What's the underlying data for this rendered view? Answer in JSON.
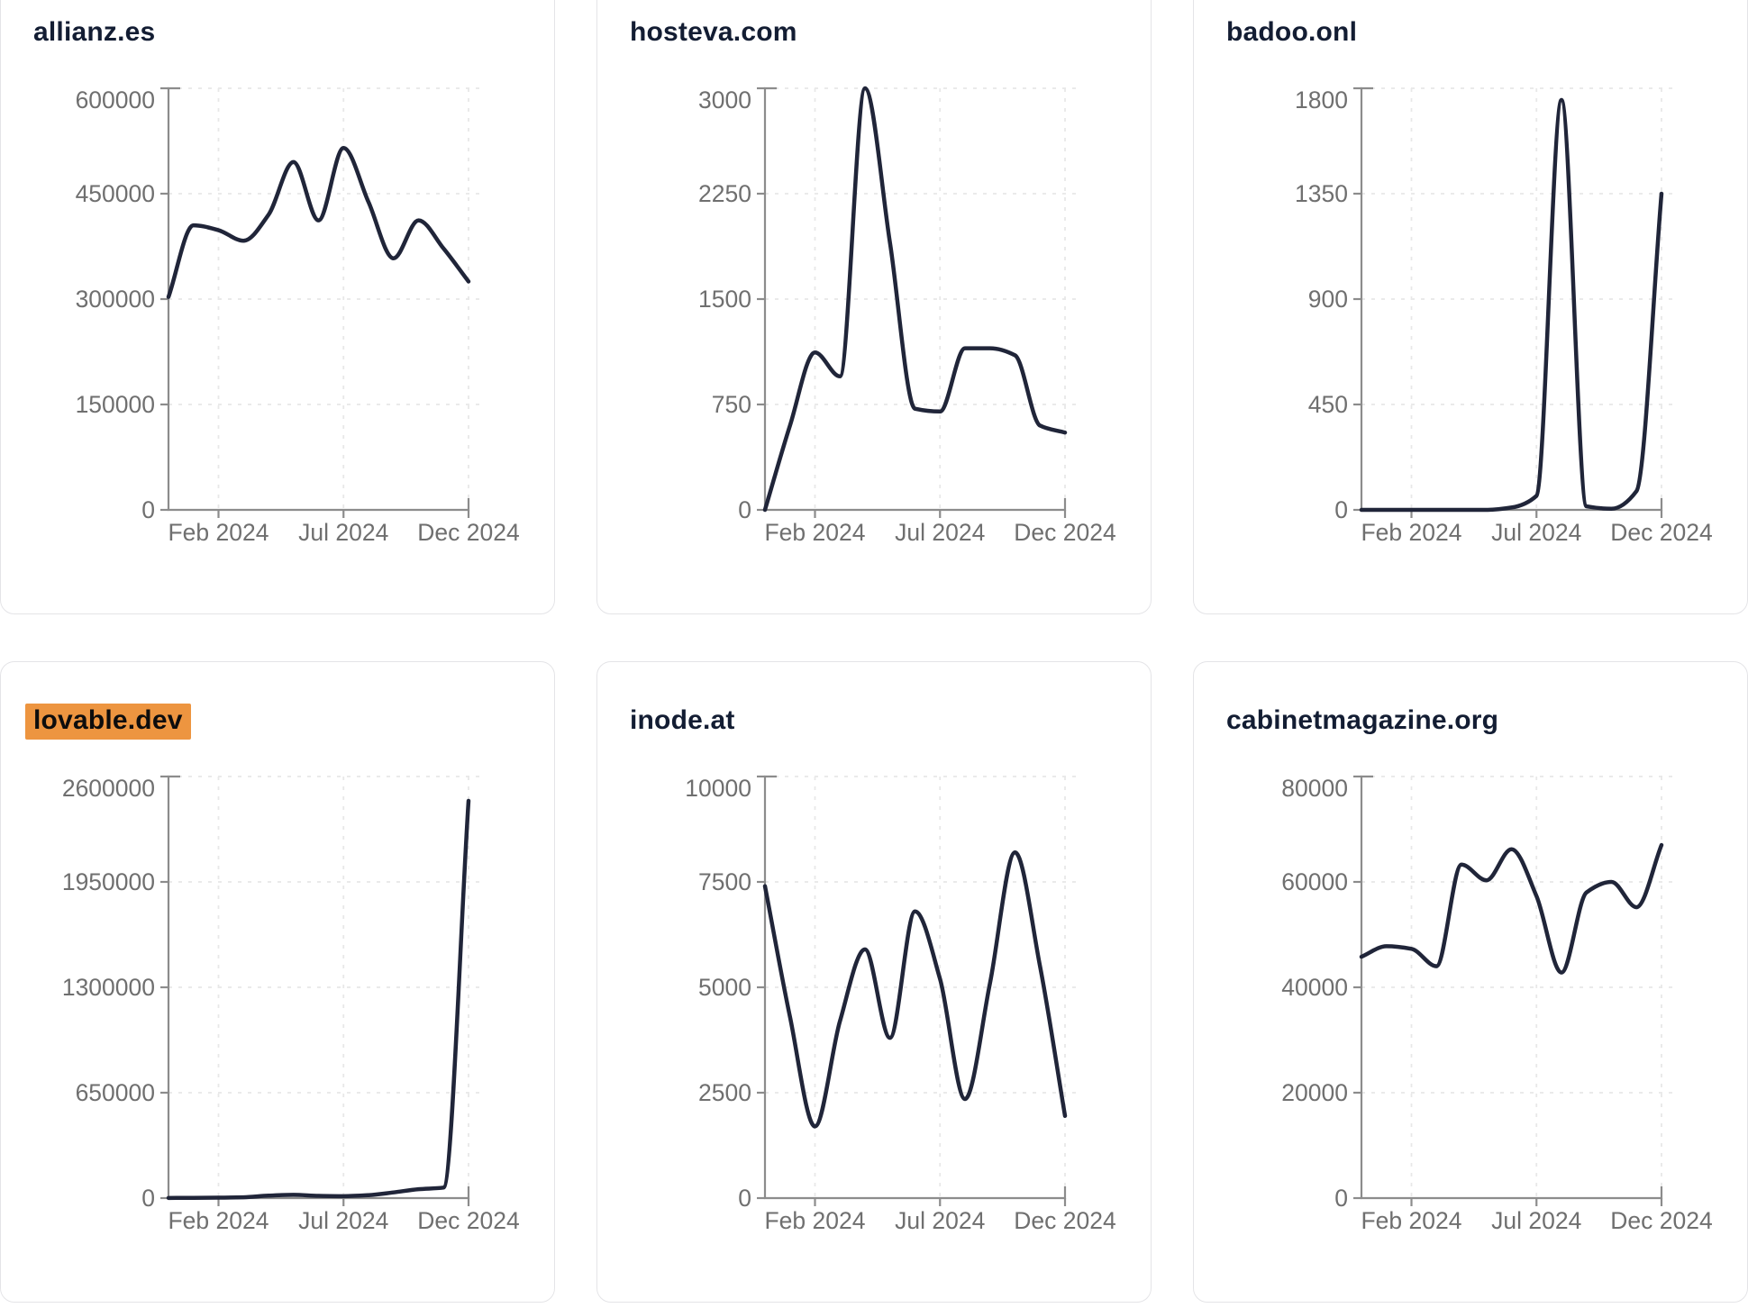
{
  "page": {
    "colors": {
      "accent_line": "#202539",
      "title_text": "#131d33",
      "tick_label": "#6f6f6f",
      "axis": "#8c8c8c",
      "gridline": "#e8e8e8",
      "highlight_bg": "#ed9540",
      "highlight_text": "#0d0d0d",
      "card_border": "#e4e4e7",
      "card_bg": "#ffffff",
      "page_bg": "#ffffff"
    }
  },
  "chart_data": [
    {
      "type": "line",
      "title": "allianz.es",
      "title_highlighted": false,
      "x": [
        "Dec 2023",
        "Jan 2024",
        "Feb 2024",
        "Mar 2024",
        "Apr 2024",
        "May 2024",
        "Jun 2024",
        "Jul 2024",
        "Aug 2024",
        "Sep 2024",
        "Oct 2024",
        "Nov 2024",
        "Dec 2024"
      ],
      "values": [
        303000,
        405000,
        398000,
        383000,
        420000,
        495000,
        412000,
        515000,
        438000,
        358000,
        412000,
        372000,
        325000
      ],
      "x_tick_labels": [
        "Feb 2024",
        "Jul 2024",
        "Dec 2024"
      ],
      "x_tick_indices": [
        2,
        7,
        12
      ],
      "y_ticks": [
        0,
        150000,
        300000,
        450000,
        600000
      ],
      "ylim": [
        0,
        600000
      ],
      "grid": "dashed"
    },
    {
      "type": "line",
      "title": "hosteva.com",
      "title_highlighted": false,
      "x": [
        "Dec 2023",
        "Jan 2024",
        "Feb 2024",
        "Mar 2024",
        "Apr 2024",
        "May 2024",
        "Jun 2024",
        "Jul 2024",
        "Aug 2024",
        "Sep 2024",
        "Oct 2024",
        "Nov 2024",
        "Dec 2024"
      ],
      "values": [
        0,
        600,
        1120,
        950,
        3000,
        1900,
        720,
        700,
        1150,
        1150,
        1100,
        600,
        550
      ],
      "x_tick_labels": [
        "Feb 2024",
        "Jul 2024",
        "Dec 2024"
      ],
      "x_tick_indices": [
        2,
        7,
        12
      ],
      "y_ticks": [
        0,
        750,
        1500,
        2250,
        3000
      ],
      "ylim": [
        0,
        3000
      ],
      "grid": "dashed"
    },
    {
      "type": "line",
      "title": "badoo.onl",
      "title_highlighted": false,
      "x": [
        "Dec 2023",
        "Jan 2024",
        "Feb 2024",
        "Mar 2024",
        "Apr 2024",
        "May 2024",
        "Jun 2024",
        "Jul 2024",
        "Aug 2024",
        "Sep 2024",
        "Oct 2024",
        "Nov 2024",
        "Dec 2024"
      ],
      "values": [
        0,
        0,
        0,
        0,
        0,
        0,
        10,
        60,
        1750,
        15,
        5,
        80,
        1350
      ],
      "x_tick_labels": [
        "Feb 2024",
        "Jul 2024",
        "Dec 2024"
      ],
      "x_tick_indices": [
        2,
        7,
        12
      ],
      "y_ticks": [
        0,
        450,
        900,
        1350,
        1800
      ],
      "ylim": [
        0,
        1800
      ],
      "grid": "dashed"
    },
    {
      "type": "line",
      "title": "lovable.dev",
      "title_highlighted": true,
      "x": [
        "Dec 2023",
        "Jan 2024",
        "Feb 2024",
        "Mar 2024",
        "Apr 2024",
        "May 2024",
        "Jun 2024",
        "Jul 2024",
        "Aug 2024",
        "Sep 2024",
        "Oct 2024",
        "Nov 2024",
        "Dec 2024"
      ],
      "values": [
        1000,
        1500,
        2500,
        5000,
        15000,
        20000,
        14000,
        12000,
        18000,
        35000,
        55000,
        65000,
        2450000
      ],
      "x_tick_labels": [
        "Feb 2024",
        "Jul 2024",
        "Dec 2024"
      ],
      "x_tick_indices": [
        2,
        7,
        12
      ],
      "y_ticks": [
        0,
        650000,
        1300000,
        1950000,
        2600000
      ],
      "ylim": [
        0,
        2600000
      ],
      "grid": "dashed"
    },
    {
      "type": "line",
      "title": "inode.at",
      "title_highlighted": false,
      "x": [
        "Dec 2023",
        "Jan 2024",
        "Feb 2024",
        "Mar 2024",
        "Apr 2024",
        "May 2024",
        "Jun 2024",
        "Jul 2024",
        "Aug 2024",
        "Sep 2024",
        "Oct 2024",
        "Nov 2024",
        "Dec 2024"
      ],
      "values": [
        7400,
        4300,
        1700,
        4200,
        5900,
        3800,
        6800,
        5200,
        2350,
        5100,
        8200,
        5500,
        1950
      ],
      "x_tick_labels": [
        "Feb 2024",
        "Jul 2024",
        "Dec 2024"
      ],
      "x_tick_indices": [
        2,
        7,
        12
      ],
      "y_ticks": [
        0,
        2500,
        5000,
        7500,
        10000
      ],
      "ylim": [
        0,
        10000
      ],
      "grid": "dashed"
    },
    {
      "type": "line",
      "title": "cabinetmagazine.org",
      "title_highlighted": false,
      "x": [
        "Dec 2023",
        "Jan 2024",
        "Feb 2024",
        "Mar 2024",
        "Apr 2024",
        "May 2024",
        "Jun 2024",
        "Jul 2024",
        "Aug 2024",
        "Sep 2024",
        "Oct 2024",
        "Nov 2024",
        "Dec 2024"
      ],
      "values": [
        45800,
        47800,
        47300,
        44000,
        63300,
        60300,
        66200,
        57300,
        42800,
        58000,
        60000,
        55200,
        67000
      ],
      "x_tick_labels": [
        "Feb 2024",
        "Jul 2024",
        "Dec 2024"
      ],
      "x_tick_indices": [
        2,
        7,
        12
      ],
      "y_ticks": [
        0,
        20000,
        40000,
        60000,
        80000
      ],
      "ylim": [
        0,
        80000
      ],
      "grid": "dashed"
    }
  ]
}
